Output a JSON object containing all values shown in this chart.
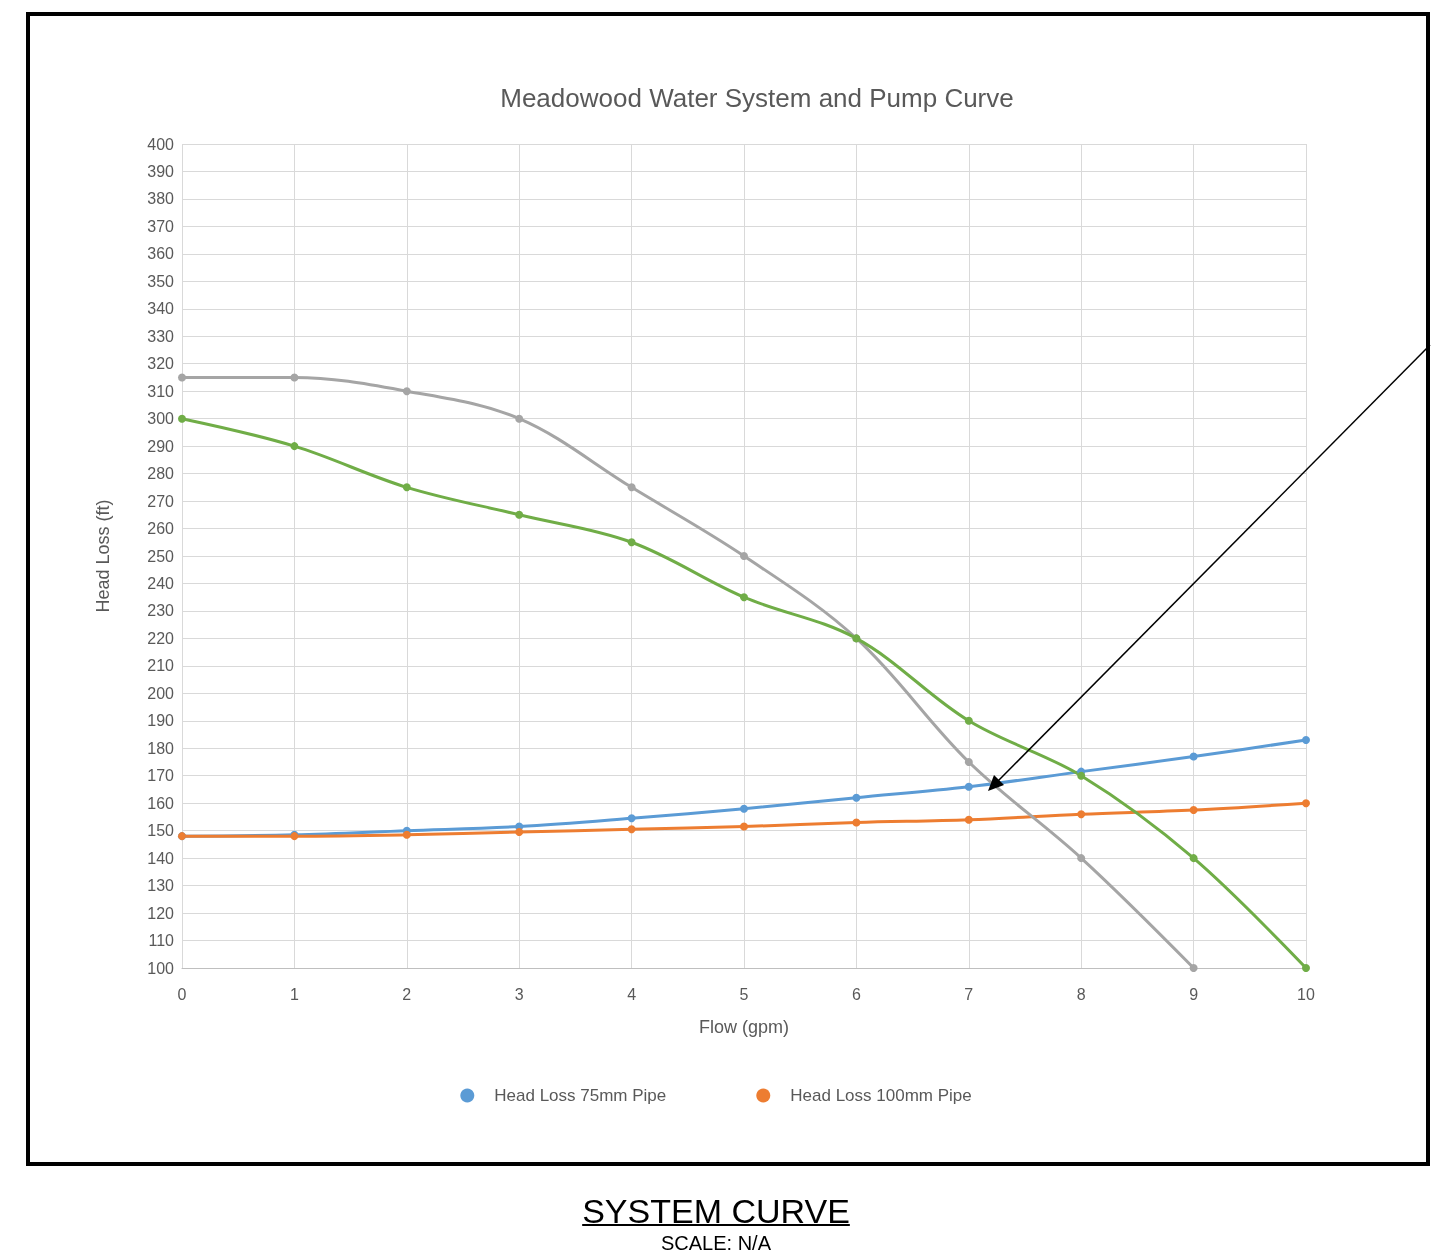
{
  "chart_data": {
    "type": "line",
    "title": "Meadowood Water System and Pump Curve",
    "xlabel": "Flow (gpm)",
    "ylabel": "Head Loss (ft)",
    "x": [
      0,
      1,
      2,
      3,
      4,
      5,
      6,
      7,
      8,
      9,
      10
    ],
    "series": [
      {
        "name": "Head Loss 75mm Pipe",
        "color": "#5b9bd5",
        "values": [
          148,
          148.5,
          150,
          151.5,
          154.5,
          158,
          162,
          166,
          171.5,
          177,
          183
        ]
      },
      {
        "name": "Head Loss 100mm Pipe",
        "color": "#ed7d31",
        "values": [
          148,
          148,
          148.5,
          149.5,
          150.5,
          151.5,
          153,
          154,
          156,
          157.5,
          160
        ]
      },
      {
        "color": "#a5a5a5",
        "values": [
          315,
          315,
          310,
          300,
          275,
          250,
          220,
          175,
          140,
          100,
          null
        ]
      },
      {
        "color": "#70ad47",
        "values": [
          300,
          290,
          275,
          265,
          255,
          235,
          220,
          190,
          170,
          140,
          100
        ]
      }
    ],
    "xlim": [
      0,
      10
    ],
    "xticks": [
      0,
      1,
      2,
      3,
      4,
      5,
      6,
      7,
      8,
      9,
      10
    ],
    "ylim": [
      100,
      400
    ],
    "yticks": [
      100,
      110,
      120,
      130,
      140,
      150,
      160,
      170,
      180,
      190,
      200,
      210,
      220,
      230,
      240,
      250,
      260,
      270,
      280,
      290,
      300,
      310,
      320,
      330,
      340,
      350,
      360,
      370,
      380,
      390,
      400
    ],
    "grid": true,
    "legend": "bottom",
    "marker": "circle",
    "line_style": "solid",
    "annotations": [
      "SYSTEM CURVE",
      "SCALE: N/A"
    ]
  }
}
